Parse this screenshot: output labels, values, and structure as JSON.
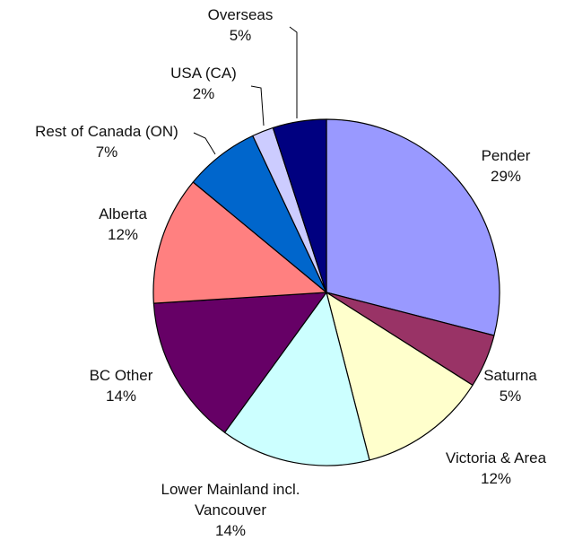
{
  "chart_data": {
    "type": "pie",
    "title": "",
    "start": "12 o'clock",
    "direction": "clockwise",
    "slices": [
      {
        "label": "Pender",
        "value": 29,
        "pct_text": "29%",
        "color": "#9999ff"
      },
      {
        "label": "Saturna",
        "value": 5,
        "pct_text": "5%",
        "color": "#993366"
      },
      {
        "label": "Victoria & Area",
        "value": 12,
        "pct_text": "12%",
        "color": "#ffffcc"
      },
      {
        "label": "Lower Mainland incl. Vancouver",
        "label_lines": [
          "Lower Mainland incl.",
          "Vancouver"
        ],
        "value": 14,
        "pct_text": "14%",
        "color": "#ccffff"
      },
      {
        "label": "BC Other",
        "value": 14,
        "pct_text": "14%",
        "color": "#660066"
      },
      {
        "label": "Alberta",
        "value": 12,
        "pct_text": "12%",
        "color": "#ff8080"
      },
      {
        "label": "Rest of Canada (ON)",
        "value": 7,
        "pct_text": "7%",
        "color": "#0066cc"
      },
      {
        "label": "USA (CA)",
        "value": 2,
        "pct_text": "2%",
        "color": "#ccccff"
      },
      {
        "label": "Overseas",
        "value": 5,
        "pct_text": "5%",
        "color": "#000080"
      }
    ]
  }
}
